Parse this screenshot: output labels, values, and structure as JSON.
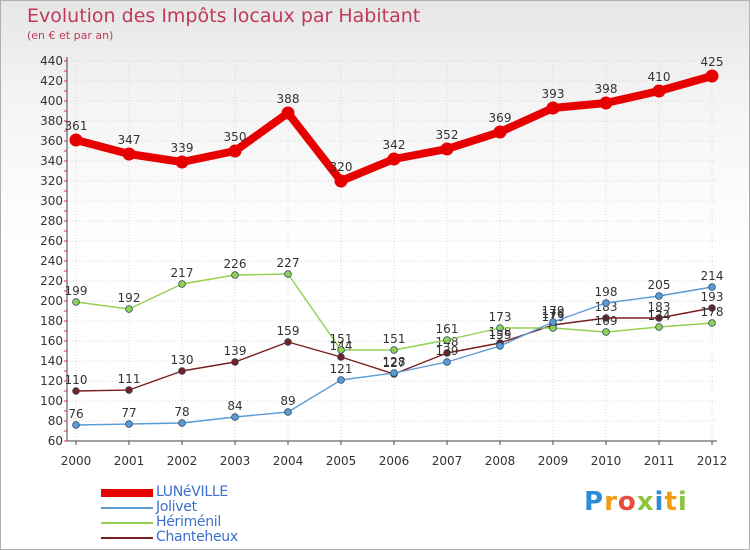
{
  "chart_data": {
    "type": "line",
    "title": "Evolution des Impôts locaux par Habitant",
    "subtitle": "(en € et par an)",
    "x": [
      "2000",
      "2001",
      "2002",
      "2003",
      "2004",
      "2005",
      "2006",
      "2007",
      "2008",
      "2009",
      "2010",
      "2011",
      "2012"
    ],
    "ylim": [
      60,
      440
    ],
    "yticks": [
      60,
      80,
      100,
      120,
      140,
      160,
      180,
      200,
      220,
      240,
      260,
      280,
      300,
      320,
      340,
      360,
      380,
      400,
      420,
      440
    ],
    "grid": true,
    "legend_position": "bottom-left",
    "series": [
      {
        "name": "LUNéVILLE",
        "color": "#e60000",
        "values": [
          361,
          347,
          339,
          350,
          388,
          320,
          342,
          352,
          369,
          393,
          398,
          410,
          425
        ]
      },
      {
        "name": "Jolivet",
        "color": "#5b9bd5",
        "values": [
          76,
          77,
          78,
          84,
          89,
          121,
          128,
          139,
          155,
          179,
          198,
          205,
          214
        ]
      },
      {
        "name": "Hériménil",
        "color": "#92d050",
        "values": [
          199,
          192,
          217,
          226,
          227,
          151,
          151,
          161,
          173,
          173,
          169,
          174,
          178
        ]
      },
      {
        "name": "Chanteheux",
        "color": "#7a1f1f",
        "values": [
          110,
          111,
          130,
          139,
          159,
          144,
          127,
          148,
          158,
          176,
          183,
          183,
          193
        ]
      }
    ]
  },
  "logo": {
    "letters": [
      {
        "ch": "P",
        "color": "#2e8bd8"
      },
      {
        "ch": "r",
        "color": "#f39c12"
      },
      {
        "ch": "o",
        "color": "#e74c3c"
      },
      {
        "ch": "x",
        "color": "#8cc63f"
      },
      {
        "ch": "i",
        "color": "#2e8bd8"
      },
      {
        "ch": "t",
        "color": "#f39c12"
      },
      {
        "ch": "i",
        "color": "#8cc63f"
      }
    ]
  }
}
